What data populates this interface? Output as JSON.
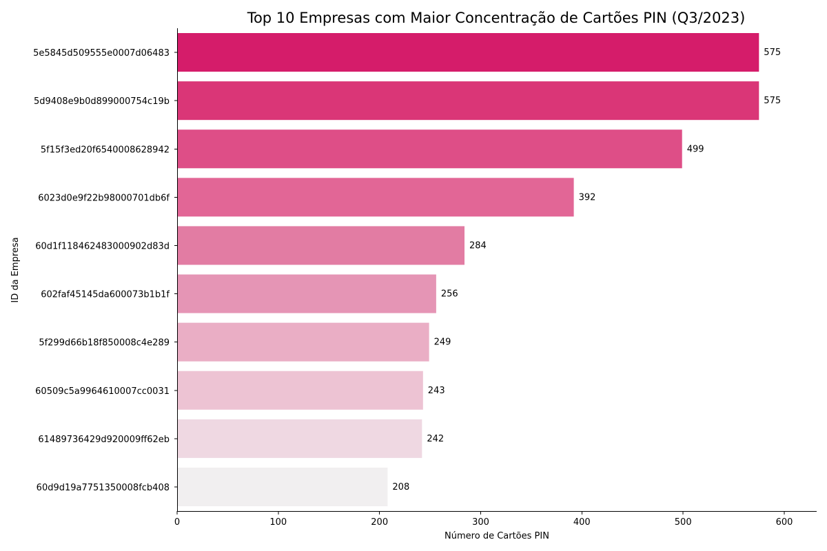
{
  "chart_data": {
    "type": "bar",
    "orientation": "horizontal",
    "title": "Top 10 Empresas com Maior Concentração de Cartões PIN (Q3/2023)",
    "xlabel": "Número de Cartões PIN",
    "ylabel": "ID da Empresa",
    "xlim": [
      0,
      632
    ],
    "xticks": [
      0,
      100,
      200,
      300,
      400,
      500,
      600
    ],
    "grid": false,
    "categories": [
      "5e5845d509555e0007d06483",
      "5d9408e9b0d899000754c19b",
      "5f15f3ed20f6540008628942",
      "6023d0e9f22b98000701db6f",
      "60d1f118462483000902d83d",
      "602faf45145da600073b1b1f",
      "5f299d66b18f850008c4e289",
      "60509c5a9964610007cc0031",
      "61489736429d920009ff62eb",
      "60d9d19a7751350008fcb408"
    ],
    "values": [
      575,
      575,
      499,
      392,
      284,
      256,
      249,
      243,
      242,
      208
    ],
    "value_labels": [
      "575",
      "575",
      "499",
      "392",
      "284",
      "256",
      "249",
      "243",
      "242",
      "208"
    ],
    "colors": [
      "#d51c6a",
      "#da3677",
      "#de4e87",
      "#e26696",
      "#e27ca3",
      "#e595b5",
      "#eaaec5",
      "#edc3d3",
      "#efd8e2",
      "#f1eff0"
    ]
  }
}
